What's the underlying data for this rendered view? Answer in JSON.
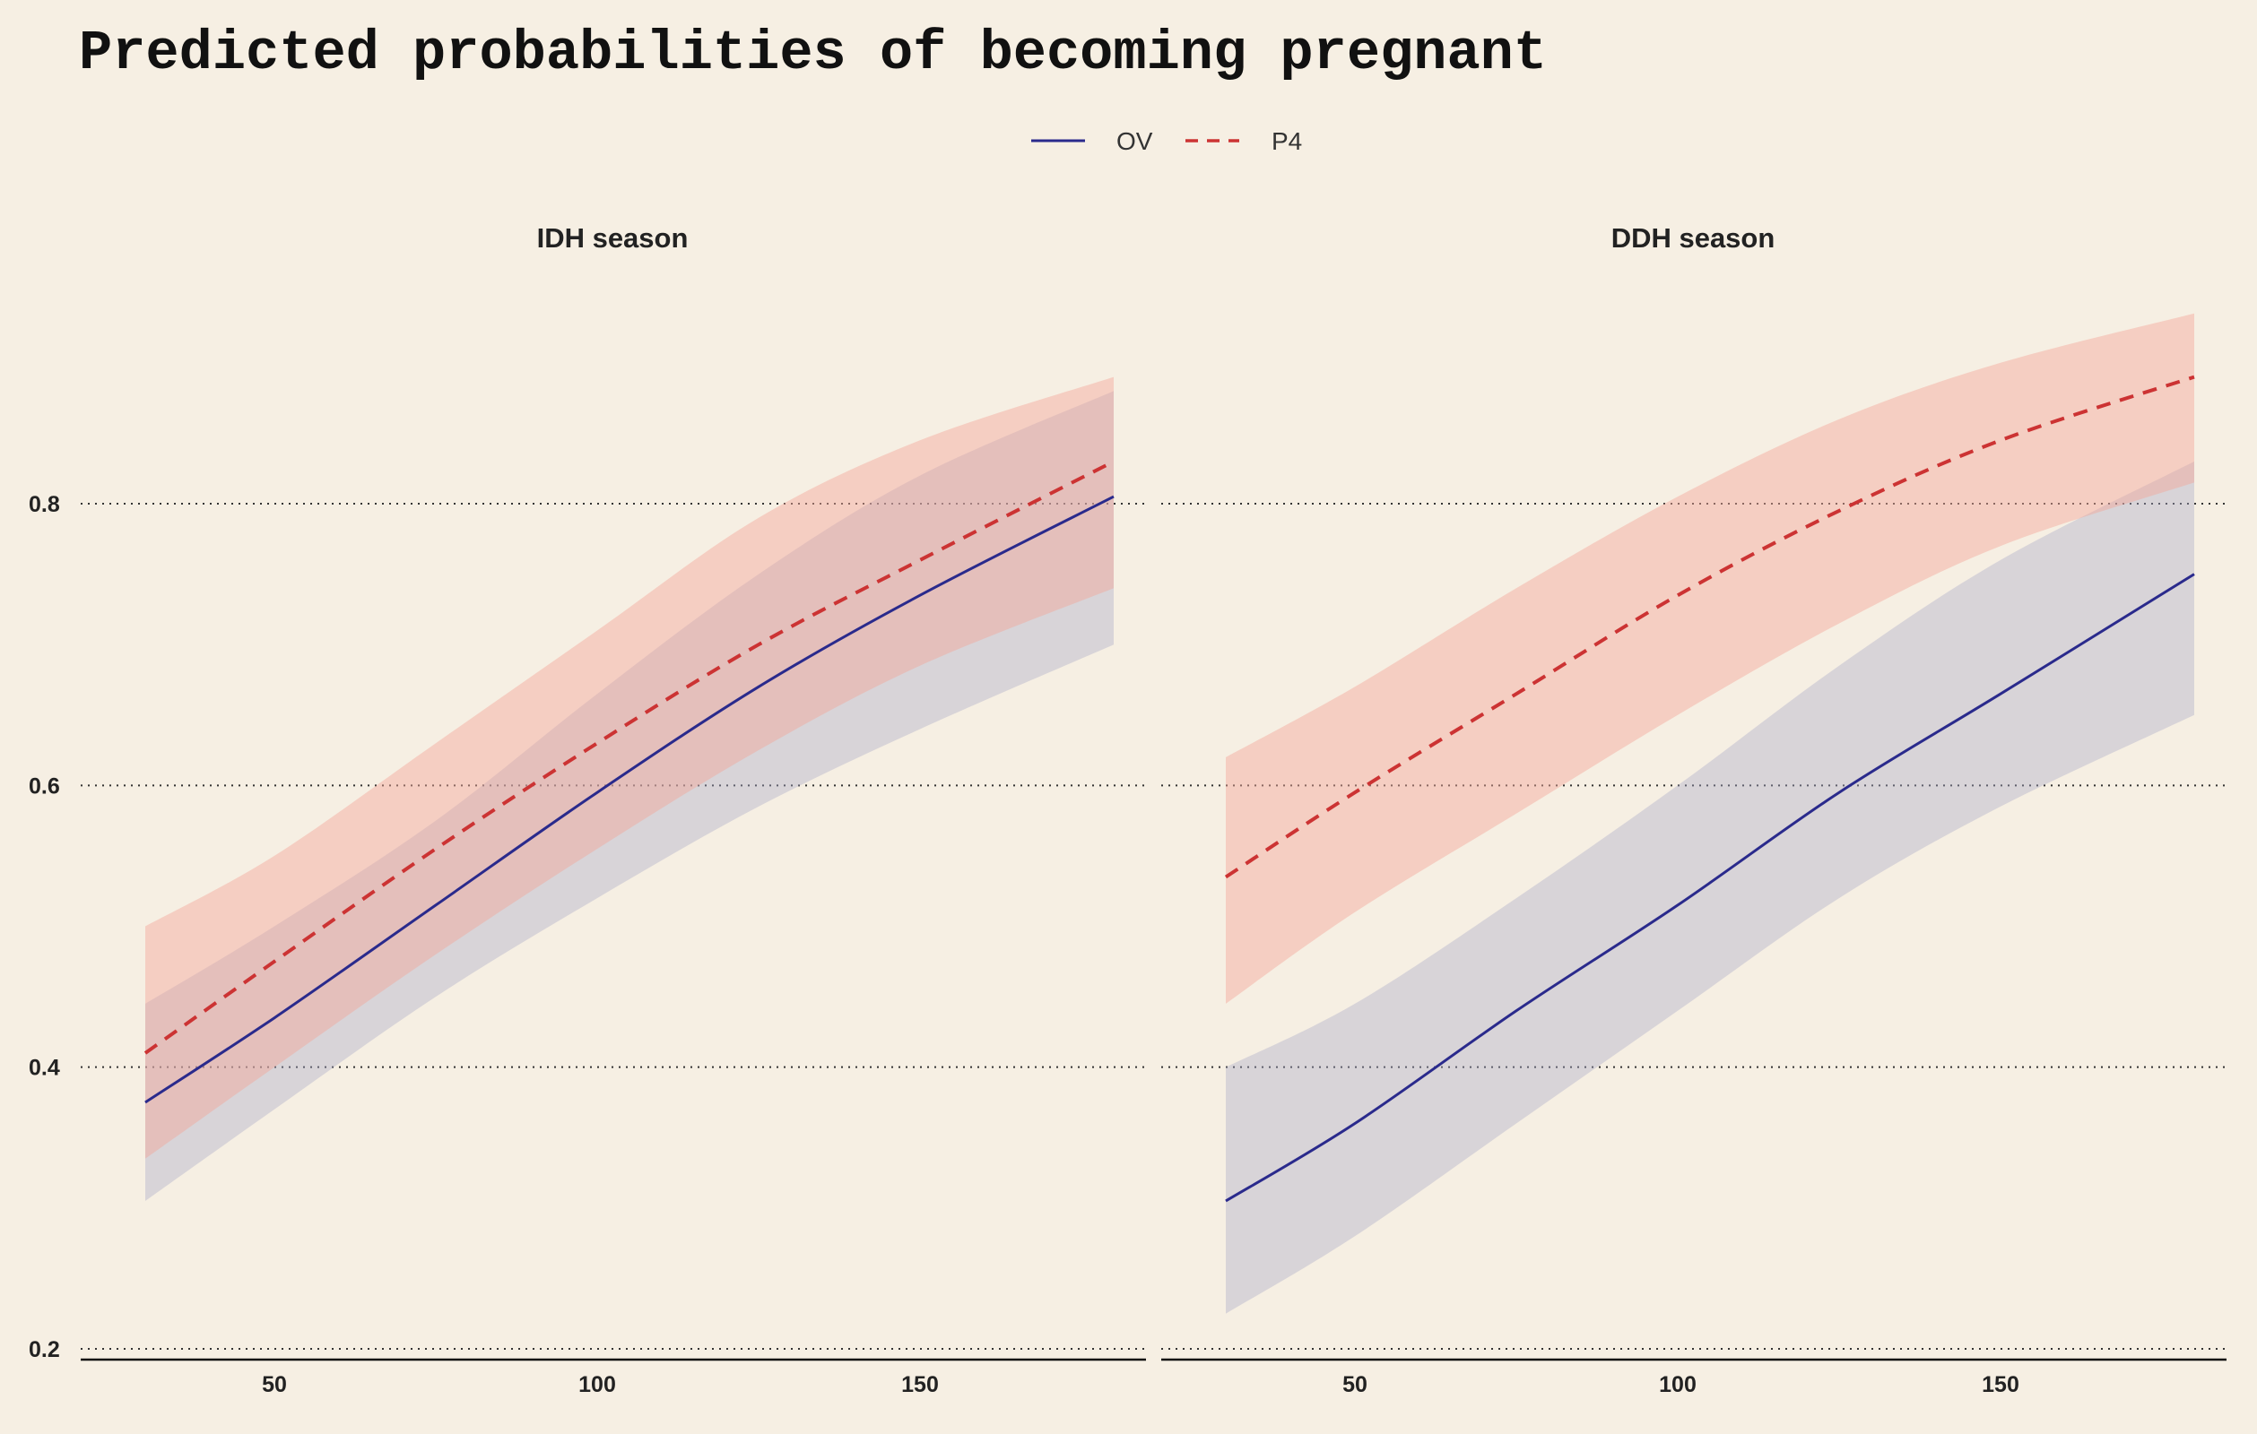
{
  "chart_data": {
    "type": "line",
    "title": "Predicted probabilities of becoming pregnant",
    "xlabel": "",
    "ylabel": "",
    "xlim": [
      20,
      185
    ],
    "ylim": [
      0.2,
      0.95
    ],
    "xticks": [
      50,
      100,
      150
    ],
    "yticks": [
      0.2,
      0.4,
      0.6,
      0.8
    ],
    "ytick_labels": [
      "0.2",
      "0.4",
      "0.6",
      "0.8"
    ],
    "xtick_labels": [
      "50",
      "100",
      "150"
    ],
    "grid": "horizontal dotted",
    "legend_position": "top",
    "legend": [
      {
        "name": "OV",
        "color": "#2a2a8c",
        "style": "solid"
      },
      {
        "name": "P4",
        "color": "#cc3333",
        "style": "dashed"
      }
    ],
    "facets": [
      {
        "label": "IDH season",
        "x": [
          30,
          50,
          75,
          100,
          125,
          150,
          180
        ],
        "series": [
          {
            "name": "OV",
            "values": [
              0.375,
              0.435,
              0.515,
              0.595,
              0.67,
              0.735,
              0.805
            ],
            "lower": [
              0.305,
              0.37,
              0.45,
              0.52,
              0.585,
              0.64,
              0.7
            ],
            "upper": [
              0.445,
              0.5,
              0.575,
              0.665,
              0.75,
              0.82,
              0.88
            ]
          },
          {
            "name": "P4",
            "values": [
              0.41,
              0.475,
              0.555,
              0.63,
              0.7,
              0.76,
              0.83
            ],
            "lower": [
              0.335,
              0.4,
              0.48,
              0.555,
              0.625,
              0.685,
              0.74
            ],
            "upper": [
              0.5,
              0.55,
              0.63,
              0.71,
              0.79,
              0.845,
              0.89
            ]
          }
        ]
      },
      {
        "label": "DDH season",
        "x": [
          30,
          50,
          75,
          100,
          125,
          150,
          180
        ],
        "series": [
          {
            "name": "OV",
            "values": [
              0.305,
              0.36,
              0.44,
              0.515,
              0.595,
              0.665,
              0.75
            ],
            "lower": [
              0.225,
              0.28,
              0.36,
              0.44,
              0.52,
              0.585,
              0.65
            ],
            "upper": [
              0.4,
              0.445,
              0.52,
              0.6,
              0.685,
              0.76,
              0.83
            ]
          },
          {
            "name": "P4",
            "values": [
              0.535,
              0.595,
              0.665,
              0.735,
              0.795,
              0.845,
              0.89
            ],
            "lower": [
              0.445,
              0.51,
              0.58,
              0.65,
              0.715,
              0.77,
              0.815
            ],
            "upper": [
              0.62,
              0.67,
              0.74,
              0.805,
              0.86,
              0.9,
              0.935
            ]
          }
        ]
      }
    ]
  },
  "colors": {
    "background": "#f6efe3",
    "ov_line": "#2a2a8c",
    "ov_band": "#a9a9c9",
    "p4_line": "#cc3333",
    "p4_band": "#f4a698"
  }
}
